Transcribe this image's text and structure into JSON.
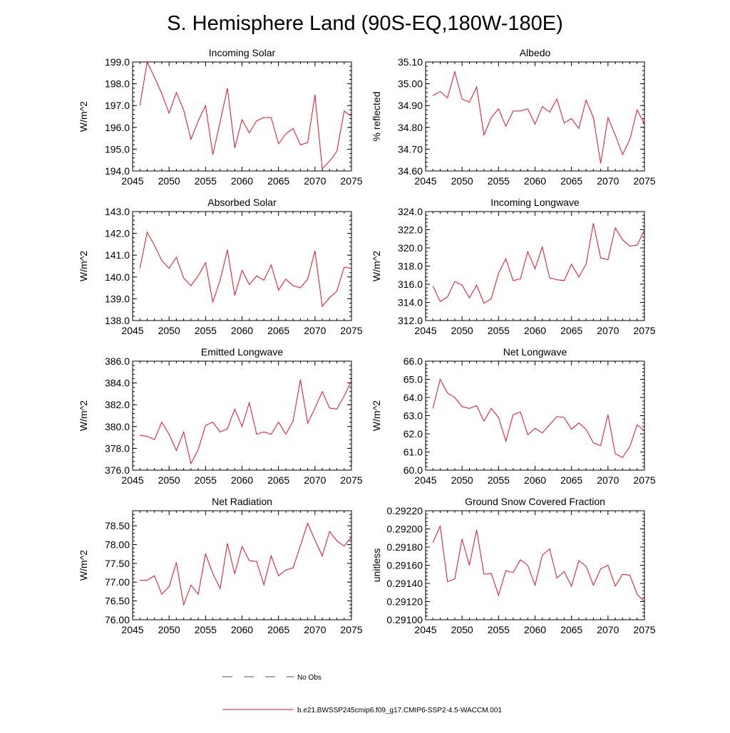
{
  "page": {
    "title": "S. Hemisphere Land (90S-EQ,180W-180E)"
  },
  "colors": {
    "model": "#e8101e",
    "obs": "#3b4bb0",
    "axis": "#000000"
  },
  "legend": {
    "obs_label": "No Obs",
    "model_label": "b.e21.BWSSP245cmip6.f09_g17.CMIP6-SSP2-4.5-WACCM.001"
  },
  "chart_data": [
    {
      "type": "line",
      "title": "Incoming Solar",
      "xlabel": "",
      "ylabel": "W/m^2",
      "xlim": [
        2045,
        2075
      ],
      "ylim": [
        194.0,
        199.0
      ],
      "xticks": [
        2045,
        2050,
        2055,
        2060,
        2065,
        2070,
        2075
      ],
      "yticks": [
        194.0,
        195.0,
        196.0,
        197.0,
        198.0,
        199.0
      ],
      "ytick_labels": [
        "194.0",
        "195.0",
        "196.0",
        "197.0",
        "198.0",
        "199.0"
      ],
      "x": [
        2046,
        2047,
        2048,
        2049,
        2050,
        2051,
        2052,
        2053,
        2054,
        2055,
        2056,
        2057,
        2058,
        2059,
        2060,
        2061,
        2062,
        2063,
        2064,
        2065,
        2066,
        2067,
        2068,
        2069,
        2070,
        2071,
        2072,
        2073,
        2074,
        2075
      ],
      "series": [
        {
          "name": "b.e21.BWSSP245cmip6.f09_g17.CMIP6-SSP2-4.5-WACCM.001",
          "values": [
            197.0,
            199.0,
            198.3,
            197.55,
            196.65,
            197.6,
            196.8,
            195.45,
            196.3,
            197.0,
            194.75,
            196.25,
            197.8,
            195.05,
            196.35,
            195.75,
            196.3,
            196.45,
            196.45,
            195.25,
            195.7,
            195.95,
            195.2,
            195.3,
            197.5,
            194.1,
            194.45,
            194.9,
            196.75,
            196.5
          ]
        }
      ]
    },
    {
      "type": "line",
      "title": "Albedo",
      "xlabel": "",
      "ylabel": "% reflected",
      "xlim": [
        2045,
        2075
      ],
      "ylim": [
        34.6,
        35.1
      ],
      "xticks": [
        2045,
        2050,
        2055,
        2060,
        2065,
        2070,
        2075
      ],
      "yticks": [
        34.6,
        34.7,
        34.8,
        34.9,
        35.0,
        35.1
      ],
      "ytick_labels": [
        "34.60",
        "34.70",
        "34.80",
        "34.90",
        "35.00",
        "35.10"
      ],
      "x": [
        2046,
        2047,
        2048,
        2049,
        2050,
        2051,
        2052,
        2053,
        2054,
        2055,
        2056,
        2057,
        2058,
        2059,
        2060,
        2061,
        2062,
        2063,
        2064,
        2065,
        2066,
        2067,
        2068,
        2069,
        2070,
        2071,
        2072,
        2073,
        2074,
        2075
      ],
      "series": [
        {
          "name": "b.e21.BWSSP245cmip6.f09_g17.CMIP6-SSP2-4.5-WACCM.001",
          "values": [
            34.945,
            34.965,
            34.935,
            35.055,
            34.93,
            34.915,
            34.985,
            34.765,
            34.845,
            34.885,
            34.805,
            34.875,
            34.875,
            34.885,
            34.815,
            34.895,
            34.87,
            34.93,
            34.82,
            34.84,
            34.795,
            34.925,
            34.845,
            34.635,
            34.845,
            34.765,
            34.675,
            34.745,
            34.88,
            34.815
          ]
        }
      ]
    },
    {
      "type": "line",
      "title": "Absorbed Solar",
      "xlabel": "",
      "ylabel": "W/m^2",
      "xlim": [
        2045,
        2075
      ],
      "ylim": [
        138.0,
        143.0
      ],
      "xticks": [
        2045,
        2050,
        2055,
        2060,
        2065,
        2070,
        2075
      ],
      "yticks": [
        138.0,
        139.0,
        140.0,
        141.0,
        142.0,
        143.0
      ],
      "ytick_labels": [
        "138.0",
        "139.0",
        "140.0",
        "141.0",
        "142.0",
        "143.0"
      ],
      "x": [
        2046,
        2047,
        2048,
        2049,
        2050,
        2051,
        2052,
        2053,
        2054,
        2055,
        2056,
        2057,
        2058,
        2059,
        2060,
        2061,
        2062,
        2063,
        2064,
        2065,
        2066,
        2067,
        2068,
        2069,
        2070,
        2071,
        2072,
        2073,
        2074,
        2075
      ],
      "series": [
        {
          "name": "b.e21.BWSSP245cmip6.f09_g17.CMIP6-SSP2-4.5-WACCM.001",
          "values": [
            140.4,
            142.05,
            141.45,
            140.75,
            140.4,
            140.9,
            139.95,
            139.6,
            140.05,
            140.65,
            138.85,
            139.85,
            141.25,
            139.15,
            140.3,
            139.65,
            140.05,
            139.85,
            140.55,
            139.4,
            139.9,
            139.6,
            139.5,
            139.9,
            141.2,
            138.65,
            139.05,
            139.35,
            140.45,
            140.4
          ]
        }
      ]
    },
    {
      "type": "line",
      "title": "Incoming Longwave",
      "xlabel": "",
      "ylabel": "W/m^2",
      "xlim": [
        2045,
        2075
      ],
      "ylim": [
        312.0,
        324.0
      ],
      "xticks": [
        2045,
        2050,
        2055,
        2060,
        2065,
        2070,
        2075
      ],
      "yticks": [
        312.0,
        314.0,
        316.0,
        318.0,
        320.0,
        322.0,
        324.0
      ],
      "ytick_labels": [
        "312.0",
        "314.0",
        "316.0",
        "318.0",
        "320.0",
        "322.0",
        "324.0"
      ],
      "x": [
        2046,
        2047,
        2048,
        2049,
        2050,
        2051,
        2052,
        2053,
        2054,
        2055,
        2056,
        2057,
        2058,
        2059,
        2060,
        2061,
        2062,
        2063,
        2064,
        2065,
        2066,
        2067,
        2068,
        2069,
        2070,
        2071,
        2072,
        2073,
        2074,
        2075
      ],
      "series": [
        {
          "name": "b.e21.BWSSP245cmip6.f09_g17.CMIP6-SSP2-4.5-WACCM.001",
          "values": [
            315.8,
            314.1,
            314.6,
            316.3,
            315.9,
            314.5,
            315.9,
            313.9,
            314.4,
            317.2,
            318.8,
            316.4,
            316.6,
            319.6,
            317.7,
            320.1,
            316.7,
            316.5,
            316.4,
            318.2,
            316.8,
            318.2,
            322.7,
            318.9,
            318.7,
            322.2,
            320.9,
            320.2,
            320.3,
            322.0
          ]
        }
      ]
    },
    {
      "type": "line",
      "title": "Emitted Longwave",
      "xlabel": "",
      "ylabel": "W/m^2",
      "xlim": [
        2045,
        2075
      ],
      "ylim": [
        376.0,
        386.0
      ],
      "xticks": [
        2045,
        2050,
        2055,
        2060,
        2065,
        2070,
        2075
      ],
      "yticks": [
        376.0,
        378.0,
        380.0,
        382.0,
        384.0,
        386.0
      ],
      "ytick_labels": [
        "376.0",
        "378.0",
        "380.0",
        "382.0",
        "384.0",
        "386.0"
      ],
      "x": [
        2046,
        2047,
        2048,
        2049,
        2050,
        2051,
        2052,
        2053,
        2054,
        2055,
        2056,
        2057,
        2058,
        2059,
        2060,
        2061,
        2062,
        2063,
        2064,
        2065,
        2066,
        2067,
        2068,
        2069,
        2070,
        2071,
        2072,
        2073,
        2074,
        2075
      ],
      "series": [
        {
          "name": "b.e21.BWSSP245cmip6.f09_g17.CMIP6-SSP2-4.5-WACCM.001",
          "values": [
            379.2,
            379.1,
            378.8,
            380.4,
            379.3,
            377.8,
            379.5,
            376.6,
            377.9,
            380.1,
            380.4,
            379.5,
            379.8,
            381.6,
            380.0,
            382.2,
            379.3,
            379.5,
            379.3,
            380.4,
            379.3,
            380.5,
            384.3,
            380.3,
            381.7,
            383.2,
            381.7,
            381.6,
            382.8,
            384.2
          ]
        }
      ]
    },
    {
      "type": "line",
      "title": "Net Longwave",
      "xlabel": "",
      "ylabel": "W/m^2",
      "xlim": [
        2045,
        2075
      ],
      "ylim": [
        60.0,
        66.0
      ],
      "xticks": [
        2045,
        2050,
        2055,
        2060,
        2065,
        2070,
        2075
      ],
      "yticks": [
        60.0,
        61.0,
        62.0,
        63.0,
        64.0,
        65.0,
        66.0
      ],
      "ytick_labels": [
        "60.0",
        "61.0",
        "62.0",
        "63.0",
        "64.0",
        "65.0",
        "66.0"
      ],
      "x": [
        2046,
        2047,
        2048,
        2049,
        2050,
        2051,
        2052,
        2053,
        2054,
        2055,
        2056,
        2057,
        2058,
        2059,
        2060,
        2061,
        2062,
        2063,
        2064,
        2065,
        2066,
        2067,
        2068,
        2069,
        2070,
        2071,
        2072,
        2073,
        2074,
        2075
      ],
      "series": [
        {
          "name": "b.e21.BWSSP245cmip6.f09_g17.CMIP6-SSP2-4.5-WACCM.001",
          "values": [
            63.4,
            65.0,
            64.25,
            64.0,
            63.5,
            63.4,
            63.55,
            62.7,
            63.4,
            62.9,
            61.6,
            63.05,
            63.2,
            61.95,
            62.3,
            62.05,
            62.5,
            62.95,
            62.9,
            62.25,
            62.6,
            62.25,
            61.5,
            61.35,
            63.05,
            60.9,
            60.7,
            61.3,
            62.5,
            62.15
          ]
        }
      ]
    },
    {
      "type": "line",
      "title": "Net Radiation",
      "xlabel": "",
      "ylabel": "W/m^2",
      "xlim": [
        2045,
        2075
      ],
      "ylim": [
        76.0,
        78.9
      ],
      "xticks": [
        2045,
        2050,
        2055,
        2060,
        2065,
        2070,
        2075
      ],
      "yticks": [
        76.0,
        76.5,
        77.0,
        77.5,
        78.0,
        78.5
      ],
      "ytick_labels": [
        "76.00",
        "76.50",
        "77.00",
        "77.50",
        "78.00",
        "78.50"
      ],
      "x": [
        2046,
        2047,
        2048,
        2049,
        2050,
        2051,
        2052,
        2053,
        2054,
        2055,
        2056,
        2057,
        2058,
        2059,
        2060,
        2061,
        2062,
        2063,
        2064,
        2065,
        2066,
        2067,
        2068,
        2069,
        2070,
        2071,
        2072,
        2073,
        2074,
        2075
      ],
      "series": [
        {
          "name": "b.e21.BWSSP245cmip6.f09_g17.CMIP6-SSP2-4.5-WACCM.001",
          "values": [
            77.05,
            77.05,
            77.17,
            76.68,
            76.88,
            77.52,
            76.4,
            76.92,
            76.68,
            77.75,
            77.23,
            76.83,
            78.03,
            77.22,
            77.95,
            77.57,
            77.55,
            76.93,
            77.7,
            77.17,
            77.32,
            77.38,
            77.97,
            78.57,
            78.12,
            77.7,
            78.35,
            78.1,
            77.96,
            78.2
          ]
        }
      ]
    },
    {
      "type": "line",
      "title": "Ground Snow Covered Fraction",
      "xlabel": "",
      "ylabel": "unitless",
      "xlim": [
        2045,
        2075
      ],
      "ylim": [
        0.291,
        0.2922
      ],
      "xticks": [
        2045,
        2050,
        2055,
        2060,
        2065,
        2070,
        2075
      ],
      "yticks": [
        0.291,
        0.2912,
        0.2914,
        0.2916,
        0.2918,
        0.292,
        0.2922
      ],
      "ytick_labels": [
        "0.29100",
        "0.29120",
        "0.29140",
        "0.29160",
        "0.29180",
        "0.29200",
        "0.29220"
      ],
      "x": [
        2046,
        2047,
        2048,
        2049,
        2050,
        2051,
        2052,
        2053,
        2054,
        2055,
        2056,
        2057,
        2058,
        2059,
        2060,
        2061,
        2062,
        2063,
        2064,
        2065,
        2066,
        2067,
        2068,
        2069,
        2070,
        2071,
        2072,
        2073,
        2074,
        2075
      ],
      "series": [
        {
          "name": "b.e21.BWSSP245cmip6.f09_g17.CMIP6-SSP2-4.5-WACCM.001",
          "values": [
            0.29185,
            0.29203,
            0.29142,
            0.29145,
            0.29189,
            0.2916,
            0.29199,
            0.2915,
            0.29151,
            0.29127,
            0.29154,
            0.29152,
            0.29166,
            0.2916,
            0.29138,
            0.29171,
            0.29178,
            0.29146,
            0.29153,
            0.29137,
            0.29165,
            0.29159,
            0.29138,
            0.29156,
            0.2916,
            0.29137,
            0.2915,
            0.29149,
            0.29128,
            0.2912
          ]
        }
      ]
    }
  ]
}
